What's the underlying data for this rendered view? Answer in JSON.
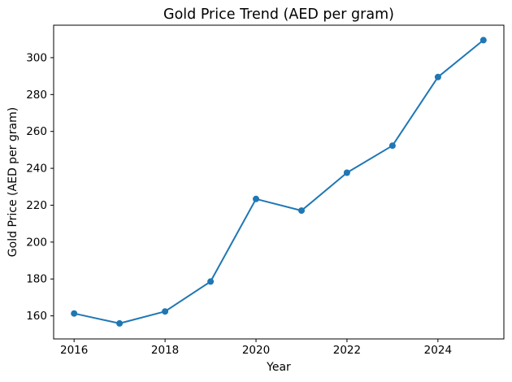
{
  "figure": {
    "background": "#ffffff",
    "text_color": "#000000"
  },
  "chart_data": {
    "type": "line",
    "title": "Gold Price Trend (AED per gram)",
    "xlabel": "Year",
    "ylabel": "Gold Price (AED per gram)",
    "x": [
      2016,
      2017,
      2018,
      2019,
      2020,
      2021,
      2022,
      2023,
      2024,
      2025
    ],
    "series": [
      {
        "name": "Gold Price (AED per gram)",
        "values": [
          161.3,
          155.9,
          162.4,
          178.6,
          223.4,
          217.1,
          237.6,
          252.3,
          289.5,
          309.5
        ],
        "color": "#1f77b4",
        "marker": "circle",
        "marker_size": 4,
        "line_width": 2
      }
    ],
    "xticks": [
      2016,
      2018,
      2020,
      2022,
      2024
    ],
    "yticks": [
      160,
      180,
      200,
      220,
      240,
      260,
      280,
      300
    ],
    "xlim": [
      2015.55,
      2025.45
    ],
    "ylim": [
      147.5,
      317.6
    ],
    "grid": false,
    "legend_position": "none",
    "plot_border": "box",
    "spine_color": "#000000"
  }
}
